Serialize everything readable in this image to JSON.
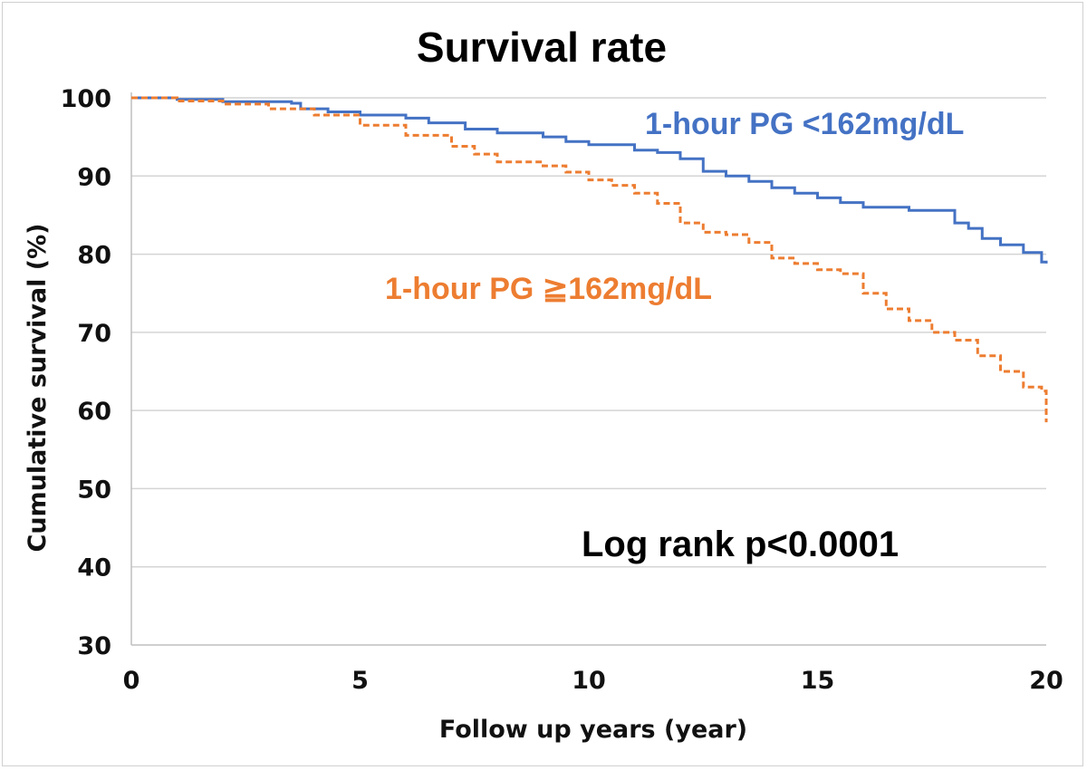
{
  "chart_data": {
    "type": "line",
    "title": "Survival rate",
    "xlabel": "Follow up years (year)",
    "ylabel": "Cumulative survival (%)",
    "xlim": [
      0,
      20
    ],
    "ylim": [
      30,
      100
    ],
    "xticks": [
      "0",
      "5",
      "10",
      "15",
      "20"
    ],
    "yticks": [
      "30",
      "40",
      "50",
      "60",
      "70",
      "80",
      "90",
      "100"
    ],
    "grid": "horizontal",
    "annotation": "Log rank p<0.0001",
    "series": [
      {
        "name": "1-hour PG <162mg/dL",
        "color": "#4472c4",
        "style": "solid",
        "x": [
          0,
          1,
          2,
          3.5,
          3.7,
          4.3,
          5,
          6,
          6.5,
          7.3,
          8,
          9,
          9.5,
          10,
          11,
          11.5,
          12,
          12.5,
          13,
          13.5,
          14,
          14.5,
          15,
          15.5,
          16,
          17,
          17.6,
          18,
          18.3,
          18.6,
          19,
          19.5,
          19.9,
          20
        ],
        "values": [
          100,
          99.8,
          99.5,
          99.3,
          98.6,
          98.2,
          97.8,
          97.4,
          96.8,
          96,
          95.5,
          95,
          94.4,
          94,
          93.3,
          93,
          92.2,
          90.6,
          90,
          89.3,
          88.5,
          87.8,
          87.2,
          86.6,
          86,
          85.6,
          85.6,
          84,
          83.3,
          82,
          81.2,
          80.2,
          79,
          78.8
        ]
      },
      {
        "name": "1-hour PG ≧162mg/dL",
        "color": "#ed7d31",
        "style": "dashed",
        "x": [
          0,
          1,
          2,
          3,
          4,
          5,
          6,
          7,
          7.5,
          8,
          9,
          9.5,
          10,
          10.5,
          11,
          11.5,
          12,
          12.5,
          13,
          13.5,
          14,
          14.5,
          15,
          15.5,
          16,
          16.5,
          17,
          17.5,
          18,
          18.5,
          19,
          19.5,
          19.9,
          20
        ],
        "values": [
          100,
          99.6,
          99.2,
          98.6,
          97.8,
          96.5,
          95.2,
          93.8,
          92.8,
          91.8,
          91.3,
          90.5,
          89.5,
          88.8,
          87.8,
          86.5,
          84,
          82.8,
          82.5,
          81.5,
          79.5,
          78.8,
          78,
          77.5,
          75,
          73,
          71.5,
          70,
          69,
          67,
          65,
          63,
          62.5,
          58.5
        ]
      }
    ]
  }
}
